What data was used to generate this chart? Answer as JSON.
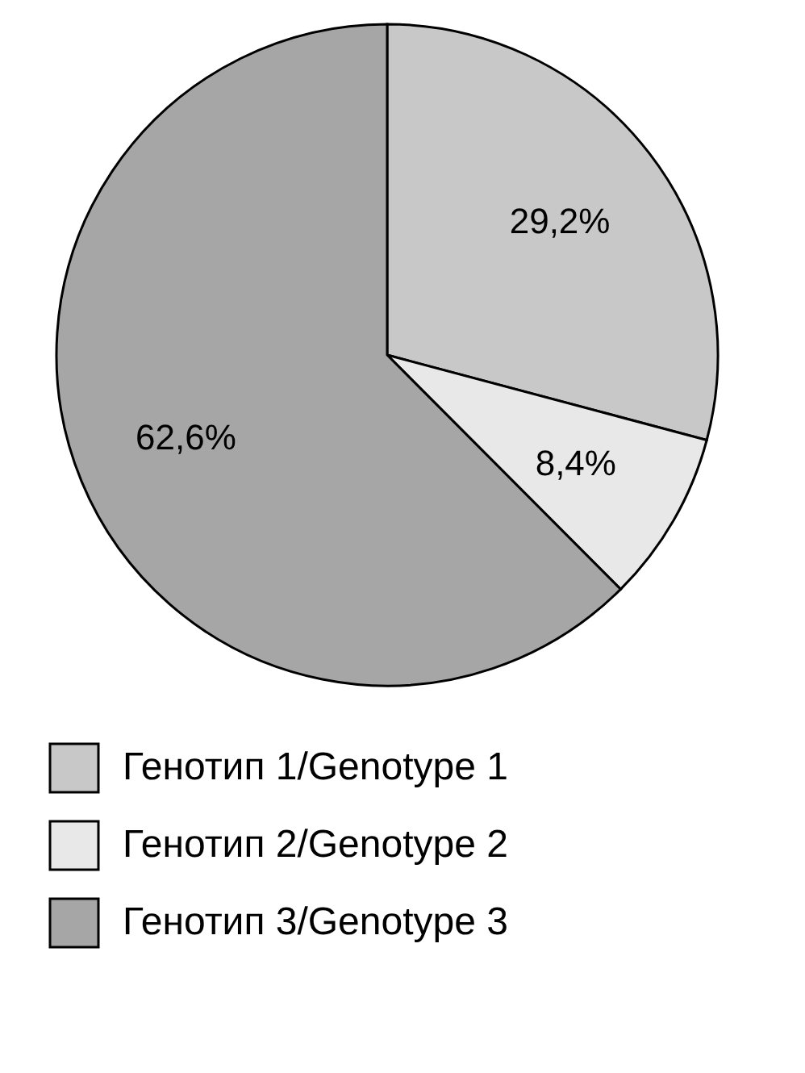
{
  "chart_data": {
    "type": "pie",
    "categories": [
      "Генотип 1/Genotype 1",
      "Генотип 2/Genotype 2",
      "Генотип 3/Genotype 3"
    ],
    "values": [
      29.2,
      8.4,
      62.6
    ],
    "colors": [
      "#c8c8c8",
      "#e8e8e8",
      "#a6a6a6"
    ],
    "value_labels": [
      "29,2%",
      "8,4%",
      "62,6%"
    ],
    "legend": "bottom"
  }
}
